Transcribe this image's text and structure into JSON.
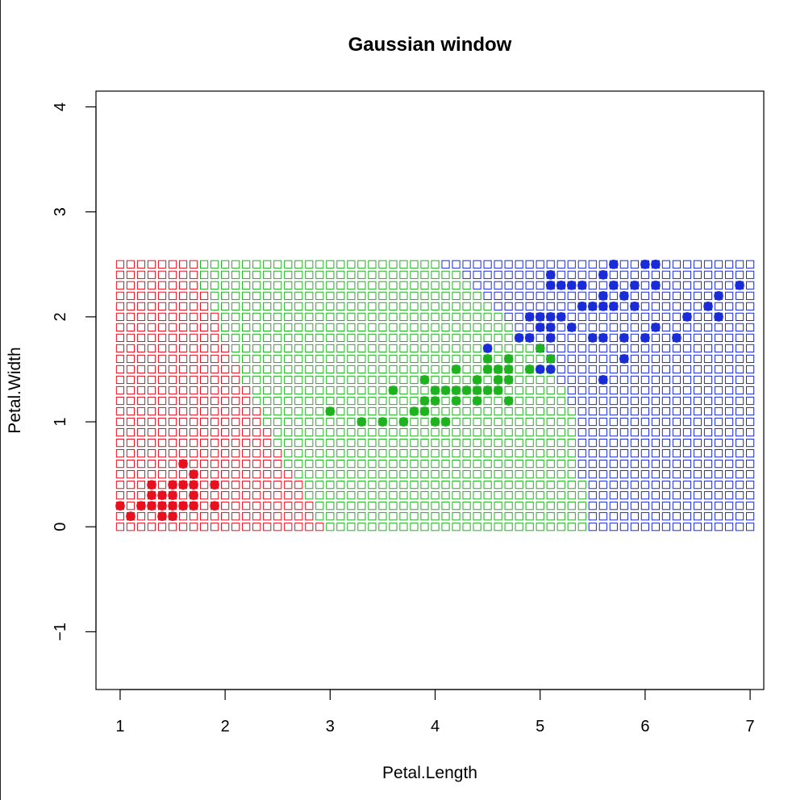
{
  "chart_data": {
    "type": "scatter",
    "title": "Gaussian window",
    "xlabel": "Petal.Length",
    "ylabel": "Petal.Width",
    "xlim": [
      0.77,
      7.13
    ],
    "ylim": [
      -1.55,
      4.15
    ],
    "x_ticks": [
      1,
      2,
      3,
      4,
      5,
      6,
      7
    ],
    "y_ticks": [
      -1,
      0,
      1,
      2,
      3,
      4
    ],
    "x_tick_labels": [
      "1",
      "2",
      "3",
      "4",
      "5",
      "6",
      "7"
    ],
    "y_tick_labels": [
      "−1",
      "0",
      "1",
      "2",
      "3",
      "4"
    ],
    "colors": {
      "setosa": "#e8101e",
      "versicolor": "#1fb21f",
      "virginica": "#1a2bd8"
    },
    "grid": {
      "description": "open squares: classification of a grid over the domain",
      "x_start": 1.0,
      "x_step": 0.1,
      "x_count": 61,
      "y_start": 0.0,
      "y_step": 0.1,
      "y_count": 26,
      "boundary_setosa_versicolor": [
        [
          0.0,
          2.9
        ],
        [
          0.1,
          2.8
        ],
        [
          0.2,
          2.8
        ],
        [
          0.3,
          2.7
        ],
        [
          0.4,
          2.7
        ],
        [
          0.5,
          2.6
        ],
        [
          0.6,
          2.5
        ],
        [
          0.7,
          2.5
        ],
        [
          0.8,
          2.4
        ],
        [
          0.9,
          2.4
        ],
        [
          1.0,
          2.3
        ],
        [
          1.1,
          2.3
        ],
        [
          1.2,
          2.2
        ],
        [
          1.3,
          2.2
        ],
        [
          1.4,
          2.1
        ],
        [
          1.5,
          2.1
        ],
        [
          1.6,
          2.0
        ],
        [
          1.7,
          2.0
        ],
        [
          1.8,
          1.9
        ],
        [
          1.9,
          1.9
        ],
        [
          2.0,
          1.9
        ],
        [
          2.1,
          1.8
        ],
        [
          2.2,
          1.8
        ],
        [
          2.3,
          1.7
        ],
        [
          2.4,
          1.7
        ],
        [
          2.5,
          1.7
        ]
      ],
      "boundary_versicolor_virginica": [
        [
          0.0,
          5.4
        ],
        [
          0.1,
          5.4
        ],
        [
          0.2,
          5.4
        ],
        [
          0.3,
          5.4
        ],
        [
          0.4,
          5.4
        ],
        [
          0.5,
          5.3
        ],
        [
          0.6,
          5.3
        ],
        [
          0.7,
          5.3
        ],
        [
          0.8,
          5.3
        ],
        [
          0.9,
          5.3
        ],
        [
          1.0,
          5.3
        ],
        [
          1.1,
          5.3
        ],
        [
          1.2,
          5.2
        ],
        [
          1.3,
          5.2
        ],
        [
          1.4,
          5.1
        ],
        [
          1.5,
          5.1
        ],
        [
          1.6,
          5.0
        ],
        [
          1.7,
          4.9
        ],
        [
          1.8,
          4.8
        ],
        [
          1.9,
          4.7
        ],
        [
          2.0,
          4.6
        ],
        [
          2.1,
          4.5
        ],
        [
          2.2,
          4.4
        ],
        [
          2.3,
          4.3
        ],
        [
          2.4,
          4.2
        ],
        [
          2.5,
          4.0
        ]
      ]
    },
    "series": [
      {
        "class": "setosa",
        "points": [
          [
            1.0,
            0.2
          ],
          [
            1.1,
            0.1
          ],
          [
            1.2,
            0.2
          ],
          [
            1.3,
            0.2
          ],
          [
            1.3,
            0.3
          ],
          [
            1.3,
            0.4
          ],
          [
            1.4,
            0.1
          ],
          [
            1.4,
            0.2
          ],
          [
            1.4,
            0.3
          ],
          [
            1.5,
            0.1
          ],
          [
            1.5,
            0.2
          ],
          [
            1.5,
            0.3
          ],
          [
            1.5,
            0.4
          ],
          [
            1.6,
            0.2
          ],
          [
            1.6,
            0.4
          ],
          [
            1.6,
            0.6
          ],
          [
            1.7,
            0.2
          ],
          [
            1.7,
            0.3
          ],
          [
            1.7,
            0.4
          ],
          [
            1.7,
            0.5
          ],
          [
            1.9,
            0.2
          ],
          [
            1.9,
            0.4
          ]
        ]
      },
      {
        "class": "versicolor",
        "points": [
          [
            3.0,
            1.1
          ],
          [
            3.3,
            1.0
          ],
          [
            3.5,
            1.0
          ],
          [
            3.6,
            1.3
          ],
          [
            3.7,
            1.0
          ],
          [
            3.8,
            1.1
          ],
          [
            3.9,
            1.1
          ],
          [
            3.9,
            1.2
          ],
          [
            3.9,
            1.4
          ],
          [
            4.0,
            1.0
          ],
          [
            4.0,
            1.2
          ],
          [
            4.0,
            1.3
          ],
          [
            4.1,
            1.0
          ],
          [
            4.1,
            1.3
          ],
          [
            4.2,
            1.2
          ],
          [
            4.2,
            1.3
          ],
          [
            4.2,
            1.5
          ],
          [
            4.3,
            1.3
          ],
          [
            4.4,
            1.2
          ],
          [
            4.4,
            1.3
          ],
          [
            4.4,
            1.4
          ],
          [
            4.5,
            1.3
          ],
          [
            4.5,
            1.5
          ],
          [
            4.5,
            1.6
          ],
          [
            4.6,
            1.3
          ],
          [
            4.6,
            1.4
          ],
          [
            4.6,
            1.5
          ],
          [
            4.7,
            1.2
          ],
          [
            4.7,
            1.4
          ],
          [
            4.7,
            1.5
          ],
          [
            4.7,
            1.6
          ],
          [
            4.9,
            1.5
          ],
          [
            5.0,
            1.7
          ],
          [
            5.1,
            1.6
          ]
        ]
      },
      {
        "class": "virginica",
        "points": [
          [
            4.5,
            1.7
          ],
          [
            4.8,
            1.8
          ],
          [
            4.9,
            1.8
          ],
          [
            4.9,
            2.0
          ],
          [
            5.0,
            1.5
          ],
          [
            5.0,
            1.9
          ],
          [
            5.0,
            2.0
          ],
          [
            5.1,
            1.5
          ],
          [
            5.1,
            1.8
          ],
          [
            5.1,
            1.9
          ],
          [
            5.1,
            2.0
          ],
          [
            5.1,
            2.3
          ],
          [
            5.1,
            2.4
          ],
          [
            5.2,
            2.0
          ],
          [
            5.2,
            2.3
          ],
          [
            5.3,
            1.9
          ],
          [
            5.3,
            2.3
          ],
          [
            5.4,
            2.1
          ],
          [
            5.4,
            2.3
          ],
          [
            5.5,
            1.8
          ],
          [
            5.5,
            2.1
          ],
          [
            5.6,
            1.4
          ],
          [
            5.6,
            1.8
          ],
          [
            5.6,
            2.1
          ],
          [
            5.6,
            2.2
          ],
          [
            5.6,
            2.4
          ],
          [
            5.7,
            2.1
          ],
          [
            5.7,
            2.3
          ],
          [
            5.7,
            2.5
          ],
          [
            5.8,
            1.6
          ],
          [
            5.8,
            1.8
          ],
          [
            5.8,
            2.2
          ],
          [
            5.9,
            2.1
          ],
          [
            5.9,
            2.3
          ],
          [
            6.0,
            1.8
          ],
          [
            6.0,
            2.5
          ],
          [
            6.1,
            1.9
          ],
          [
            6.1,
            2.3
          ],
          [
            6.1,
            2.5
          ],
          [
            6.3,
            1.8
          ],
          [
            6.4,
            2.0
          ],
          [
            6.6,
            2.1
          ],
          [
            6.7,
            2.0
          ],
          [
            6.7,
            2.2
          ],
          [
            6.9,
            2.3
          ]
        ]
      }
    ]
  }
}
